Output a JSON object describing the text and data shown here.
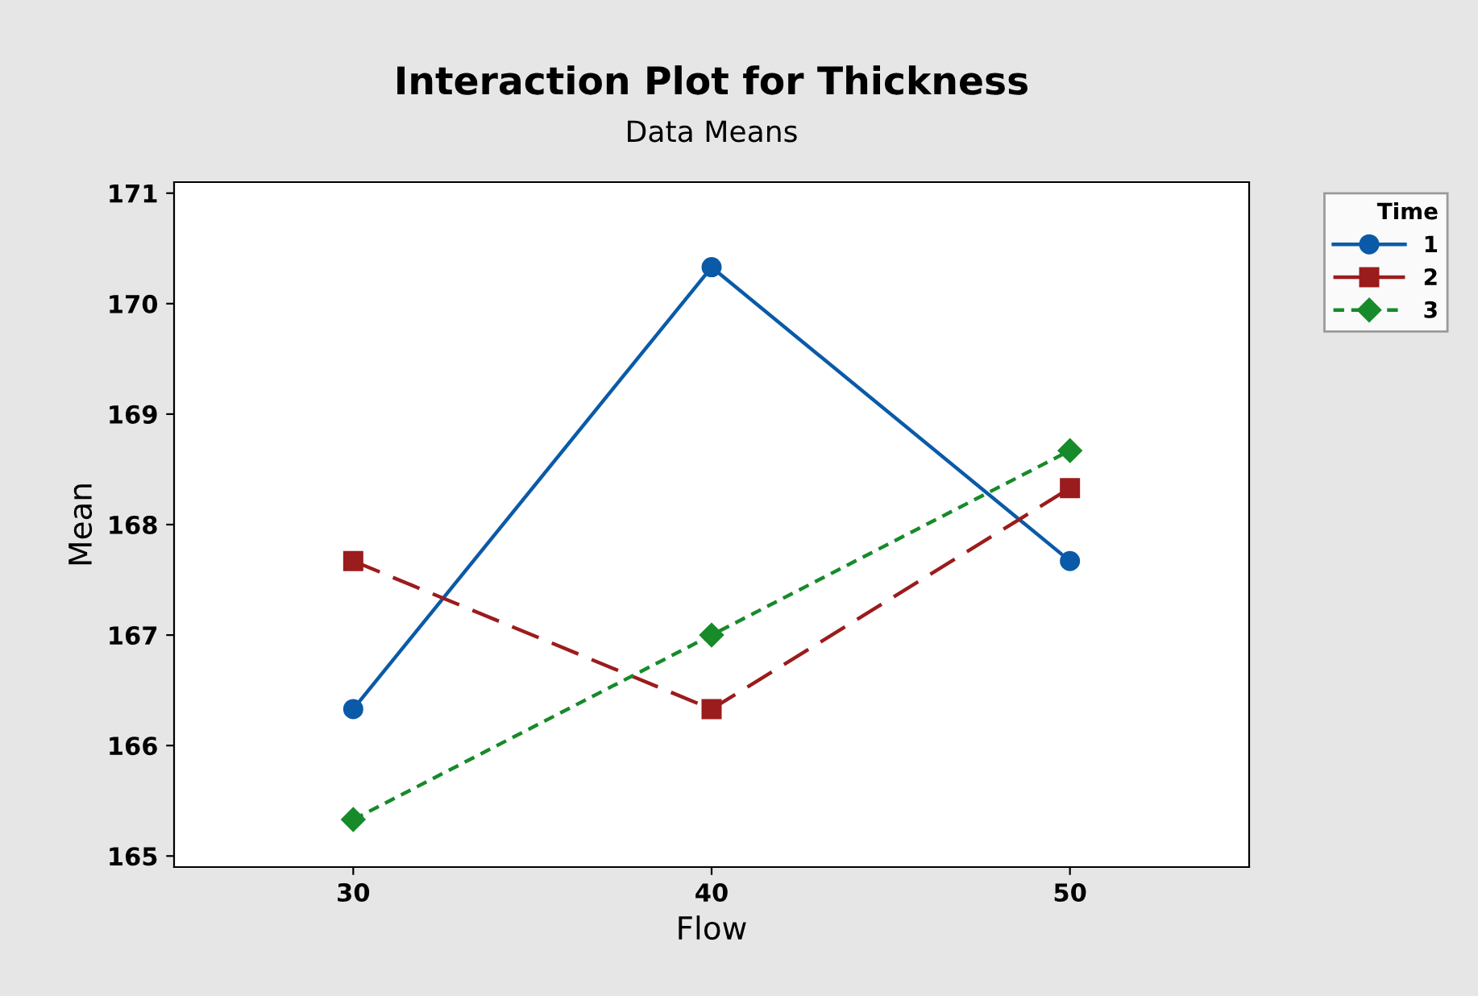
{
  "chart_data": {
    "type": "line",
    "title": "Interaction Plot for Thickness",
    "subtitle": "Data Means",
    "xlabel": "Flow",
    "ylabel": "Mean",
    "legend_title": "Time",
    "x": [
      30,
      40,
      50
    ],
    "series": [
      {
        "name": "1",
        "color": "#0a5aa8",
        "values": [
          166.33,
          170.33,
          167.67
        ],
        "marker": "circle",
        "line_style": "solid"
      },
      {
        "name": "2",
        "color": "#9b1c1c",
        "values": [
          167.67,
          166.33,
          168.33
        ],
        "marker": "square",
        "line_style": "dashed"
      },
      {
        "name": "3",
        "color": "#178a2a",
        "values": [
          165.33,
          167.0,
          168.67
        ],
        "marker": "diamond",
        "line_style": "dotted"
      }
    ],
    "xlim": [
      25,
      55
    ],
    "xticks": [
      30,
      40,
      50
    ],
    "ylim": [
      164.9,
      171.1
    ],
    "yticks": [
      165,
      166,
      167,
      168,
      169,
      170,
      171
    ],
    "grid": false,
    "legend": "top right"
  }
}
